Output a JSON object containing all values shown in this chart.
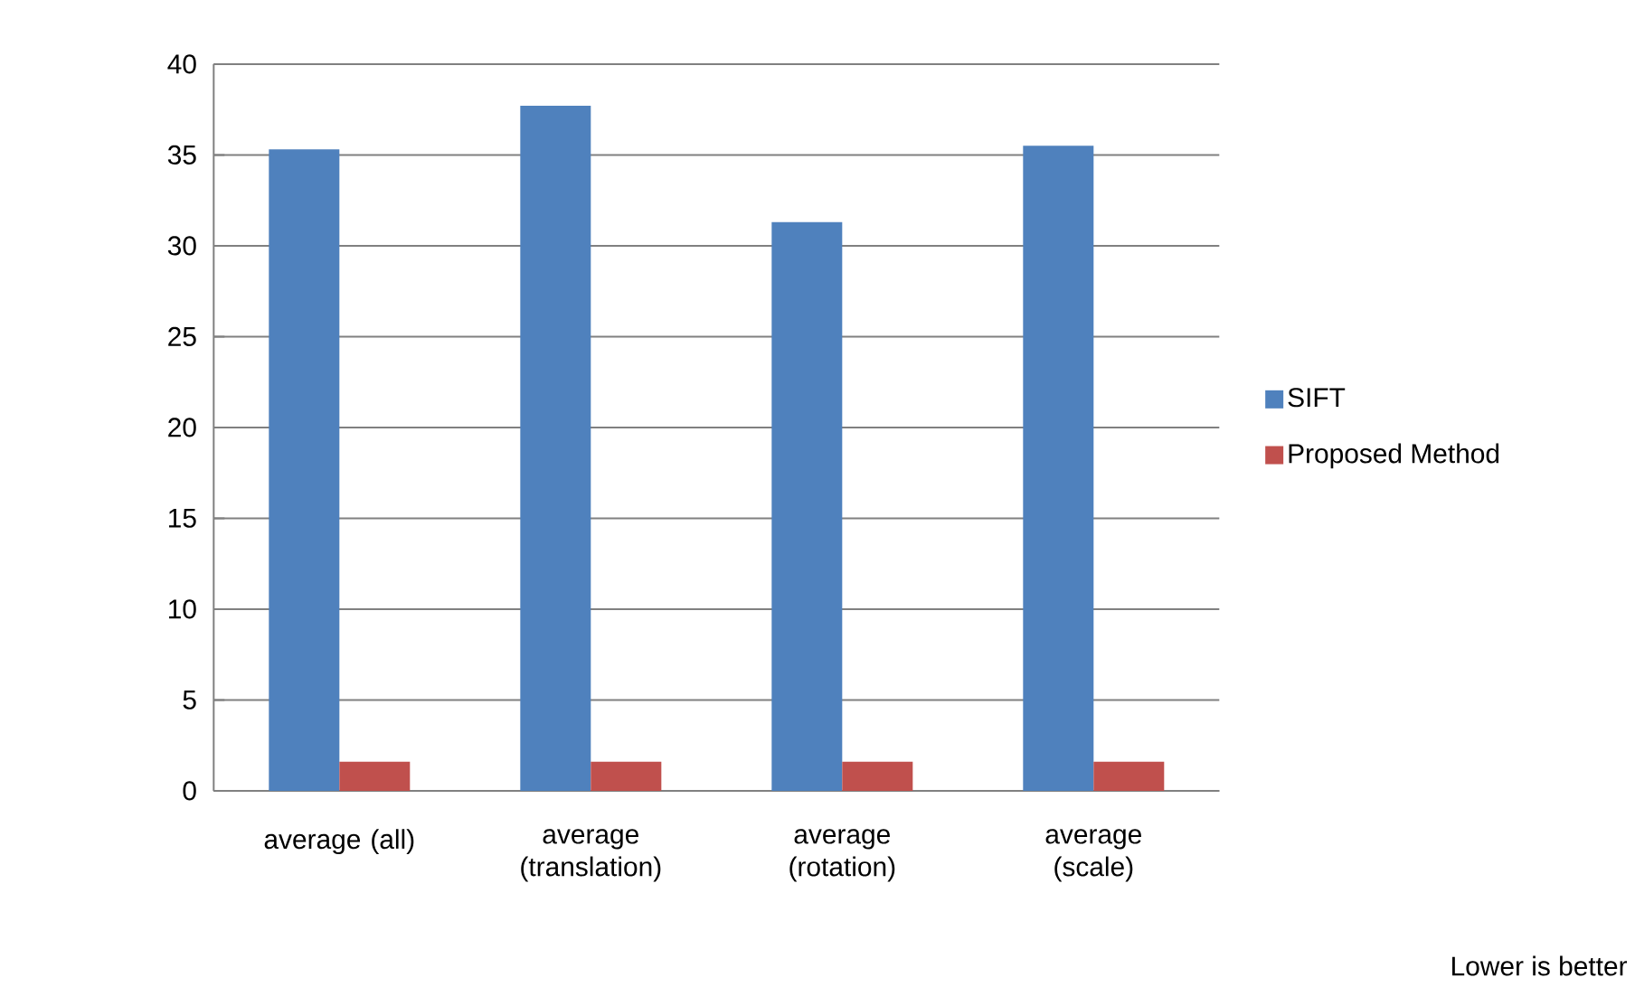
{
  "chart_data": {
    "type": "bar",
    "categories": [
      "average (all)",
      "average (translation)",
      "average (rotation)",
      "average (scale)"
    ],
    "series": [
      {
        "name": "SIFT",
        "color": "#4f81bd",
        "values": [
          35.3,
          37.7,
          31.3,
          35.5
        ]
      },
      {
        "name": "Proposed Method",
        "color": "#c0504d",
        "values": [
          1.6,
          1.6,
          1.6,
          1.6
        ]
      }
    ],
    "ylim": [
      0,
      40
    ],
    "yticks": [
      0,
      5,
      10,
      15,
      20,
      25,
      30,
      35,
      40
    ],
    "grid": "y",
    "legend": "right",
    "annotations": [
      "Lower is better"
    ]
  }
}
